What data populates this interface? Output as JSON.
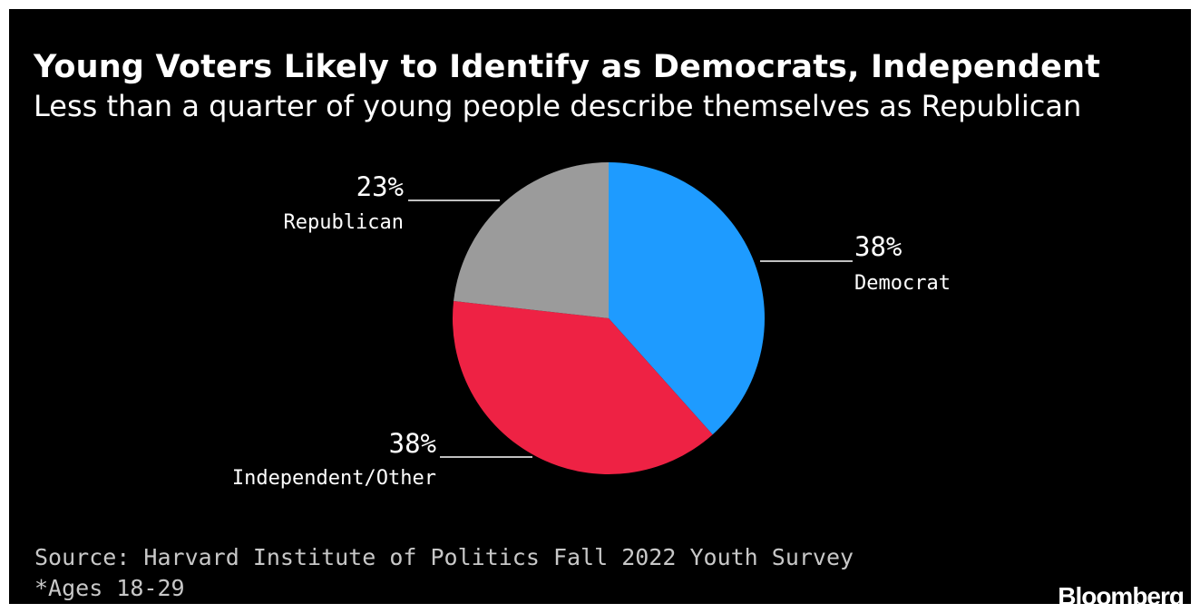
{
  "header": {
    "title": "Young Voters Likely to Identify as Democrats, Independent",
    "subtitle": "Less than a quarter of young people describe themselves as Republican"
  },
  "chart_data": {
    "type": "pie",
    "slices": [
      {
        "label": "Democrat",
        "value": 38,
        "display": "38%",
        "color": "#1e9bff"
      },
      {
        "label": "Independent/Other",
        "value": 38,
        "display": "38%",
        "color": "#ee2244"
      },
      {
        "label": "Republican",
        "value": 23,
        "display": "23%",
        "color": "#9b9b9b"
      }
    ]
  },
  "footer": {
    "source": "Source: Harvard Institute of Politics Fall 2022 Youth Survey",
    "note": "*Ages 18-29",
    "brand": "Bloomberg"
  }
}
